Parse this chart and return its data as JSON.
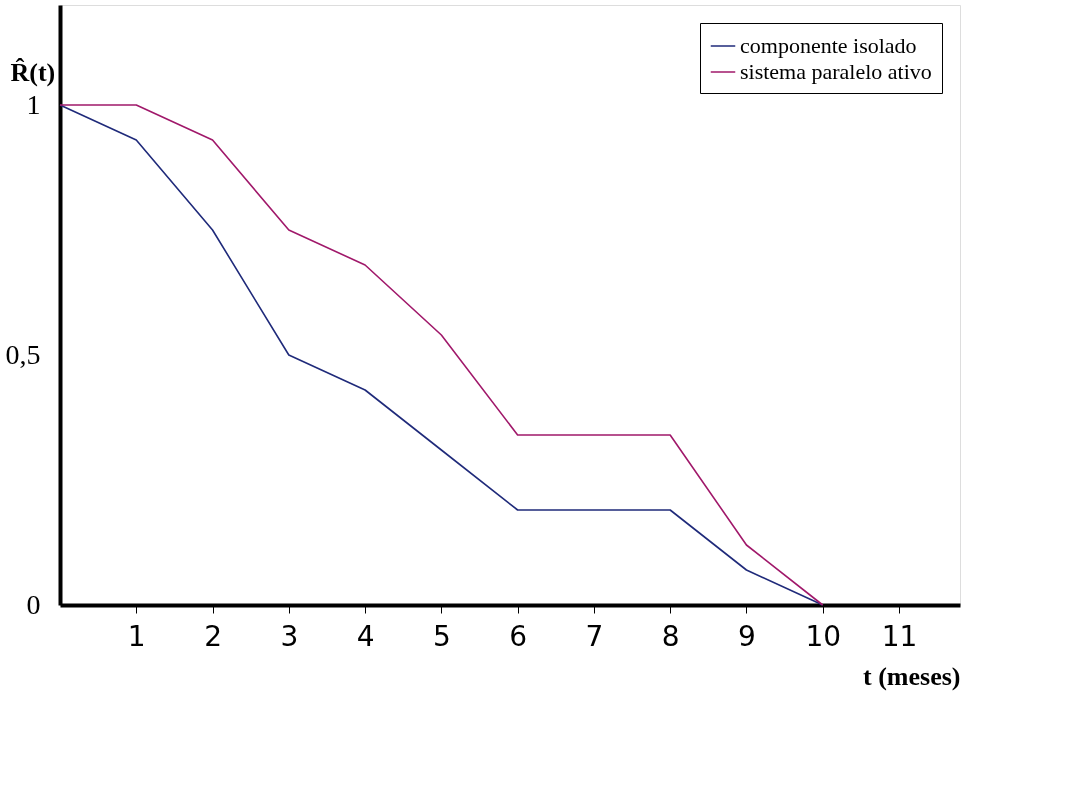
{
  "chart_data": {
    "type": "line",
    "xlabel": "t (meses)",
    "ylabel": "R̂(t)",
    "x": [
      0,
      1,
      2,
      3,
      4,
      5,
      6,
      7,
      8,
      9,
      10
    ],
    "series": [
      {
        "name": "componente isolado",
        "color": "#1f2a7a",
        "values": [
          1,
          0.93,
          0.75,
          0.5,
          0.43,
          0.31,
          0.19,
          0.19,
          0.19,
          0.07,
          0
        ]
      },
      {
        "name": "sistema paralelo ativo",
        "color": "#a0186a",
        "values": [
          1,
          1,
          0.93,
          0.75,
          0.68,
          0.54,
          0.34,
          0.34,
          0.34,
          0.12,
          0
        ]
      }
    ],
    "xlim": [
      0,
      11.8
    ],
    "ylim": [
      0,
      1.2
    ],
    "xticks": [
      1,
      2,
      3,
      4,
      5,
      6,
      7,
      8,
      9,
      10,
      11
    ],
    "yticks": [
      0,
      {
        "value": 0.5,
        "label": "0,5"
      },
      1
    ],
    "grid": false,
    "legend": "top right",
    "marker": "none",
    "line_style": "solid"
  }
}
